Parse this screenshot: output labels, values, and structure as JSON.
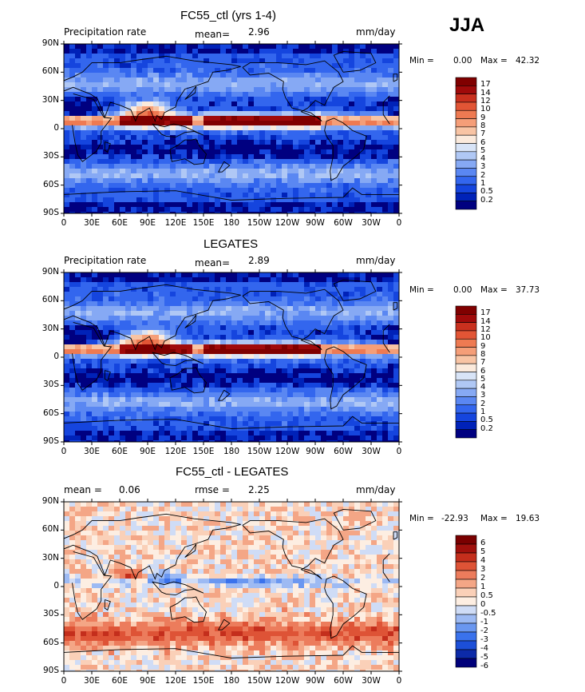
{
  "season": "JJA",
  "panels": [
    {
      "id": "model",
      "title": "FC55_ctl (yrs 1-4)",
      "left_label": "Precipitation rate",
      "mean_label": "mean=",
      "mean_value": "2.96",
      "units": "mm/day",
      "min_label": "Min =",
      "min_value": "0.00",
      "max_label": "Max =",
      "max_value": "42.32",
      "colorbar": [
        "17",
        "14",
        "12",
        "10",
        "9",
        "8",
        "7",
        "6",
        "5",
        "4",
        "3",
        "2",
        "1",
        "0.5",
        "0.2"
      ]
    },
    {
      "id": "obs",
      "title": "LEGATES",
      "left_label": "Precipitation rate",
      "mean_label": "mean=",
      "mean_value": "2.89",
      "units": "mm/day",
      "min_label": "Min =",
      "min_value": "0.00",
      "max_label": "Max =",
      "max_value": "37.73",
      "colorbar": [
        "17",
        "14",
        "12",
        "10",
        "9",
        "8",
        "7",
        "6",
        "5",
        "4",
        "3",
        "2",
        "1",
        "0.5",
        "0.2"
      ]
    },
    {
      "id": "diff",
      "title": "FC55_ctl - LEGATES",
      "mean_label": "mean =",
      "mean_value": "0.06",
      "rmse_label": "rmse =",
      "rmse_value": "2.25",
      "units": "mm/day",
      "min_label": "Min =",
      "min_value": "-22.93",
      "max_label": "Max =",
      "max_value": "19.63",
      "colorbar": [
        "6",
        "5",
        "4",
        "3",
        "2",
        "1",
        "0.5",
        "0",
        "-0.5",
        "-1",
        "-2",
        "-3",
        "-4",
        "-5",
        "-6"
      ]
    }
  ],
  "lat_ticks": [
    "90N",
    "60N",
    "30N",
    "0",
    "30S",
    "60S",
    "90S"
  ],
  "lon_ticks": [
    "0",
    "30E",
    "60E",
    "90E",
    "120E",
    "150E",
    "180",
    "150W",
    "120W",
    "90W",
    "60W",
    "30W",
    "0"
  ],
  "colors": {
    "precip_scale": [
      "#000080",
      "#0022b8",
      "#1545de",
      "#3366ee",
      "#5a87f2",
      "#86a9f4",
      "#b0c8f5",
      "#d8e4f7",
      "#fbeadc",
      "#f8c4a4",
      "#f59e78",
      "#ee7a52",
      "#e25535",
      "#c9301e",
      "#a00a0a",
      "#800000"
    ],
    "diff_scale": [
      "#00007a",
      "#0c2aa8",
      "#1c4fd8",
      "#3a72ec",
      "#6a97f0",
      "#9dbaf3",
      "#cfdcf6",
      "#fdeee2",
      "#fad0b8",
      "#f4a686",
      "#ec7c5c",
      "#de5336",
      "#c42e1c",
      "#a0100c",
      "#7a0000"
    ]
  }
}
